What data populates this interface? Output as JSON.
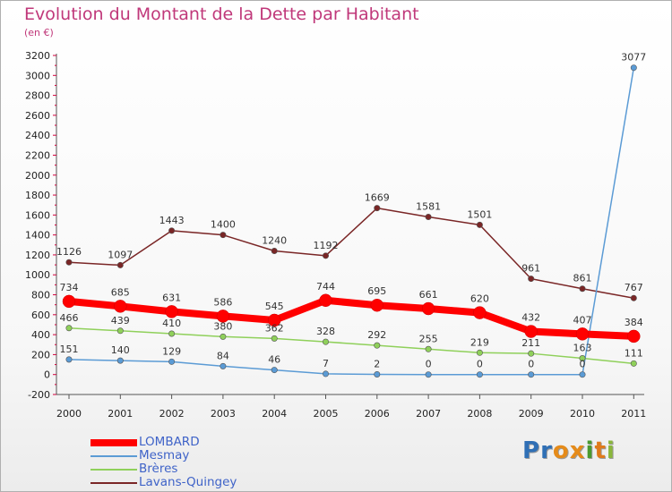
{
  "header": {
    "title": "Evolution du Montant de la Dette par Habitant",
    "subtitle": "(en €)"
  },
  "colors": {
    "title": "#c0387a",
    "axis_ticks": "#d0003c",
    "legend_text": "#3f63c8"
  },
  "logo": {
    "text": "Proxiti",
    "letters": [
      {
        "char": "P",
        "color": "#2f6fb5"
      },
      {
        "char": "r",
        "color": "#2f6fb5"
      },
      {
        "char": "o",
        "color": "#e58b1a"
      },
      {
        "char": "x",
        "color": "#e58b1a"
      },
      {
        "char": "i",
        "color": "#4a9a2f"
      },
      {
        "char": "t",
        "color": "#e07a1a"
      },
      {
        "char": "i",
        "color": "#8ab63c"
      }
    ]
  },
  "chart_data": {
    "type": "line",
    "x": [
      "2000",
      "2001",
      "2002",
      "2003",
      "2004",
      "2005",
      "2006",
      "2007",
      "2008",
      "2009",
      "2010",
      "2011"
    ],
    "ylim": [
      -200,
      3200
    ],
    "yticks": [
      -200,
      0,
      200,
      400,
      600,
      800,
      1000,
      1200,
      1400,
      1600,
      1800,
      2000,
      2200,
      2400,
      2600,
      2800,
      3000,
      3200
    ],
    "grid": false,
    "legend_position": "bottom-left",
    "series": [
      {
        "name": "LOMBARD",
        "color": "#ff0000",
        "width": 8,
        "values": [
          734,
          685,
          631,
          586,
          545,
          744,
          695,
          661,
          620,
          432,
          407,
          384
        ],
        "labels": [
          "734",
          "685",
          "631",
          "586",
          "545",
          "744",
          "695",
          "661",
          "620",
          "432",
          "407",
          "384"
        ]
      },
      {
        "name": "Mesmay",
        "color": "#5b9bd5",
        "width": 1.5,
        "values": [
          151,
          140,
          129,
          84,
          46,
          7,
          2,
          0,
          0,
          0,
          0,
          3077
        ],
        "labels": [
          "151",
          "140",
          "129",
          "84",
          "46",
          "7",
          "2",
          "0",
          "0",
          "0",
          "0",
          "3077"
        ]
      },
      {
        "name": "Brères",
        "color": "#8fd05a",
        "width": 1.5,
        "values": [
          466,
          439,
          410,
          380,
          362,
          328,
          292,
          255,
          219,
          211,
          163,
          111
        ],
        "labels": [
          "466",
          "439",
          "410",
          "380",
          "362",
          "328",
          "292",
          "255",
          "219",
          "211",
          "163",
          "111"
        ]
      },
      {
        "name": "Lavans-Quingey",
        "color": "#7a2626",
        "width": 1.5,
        "values": [
          1126,
          1097,
          1443,
          1400,
          1240,
          1192,
          1669,
          1581,
          1501,
          961,
          861,
          767
        ],
        "labels": [
          "1126",
          "1097",
          "1443",
          "1400",
          "1240",
          "1192",
          "1669",
          "1581",
          "1501",
          "961",
          "861",
          "767"
        ]
      }
    ]
  }
}
